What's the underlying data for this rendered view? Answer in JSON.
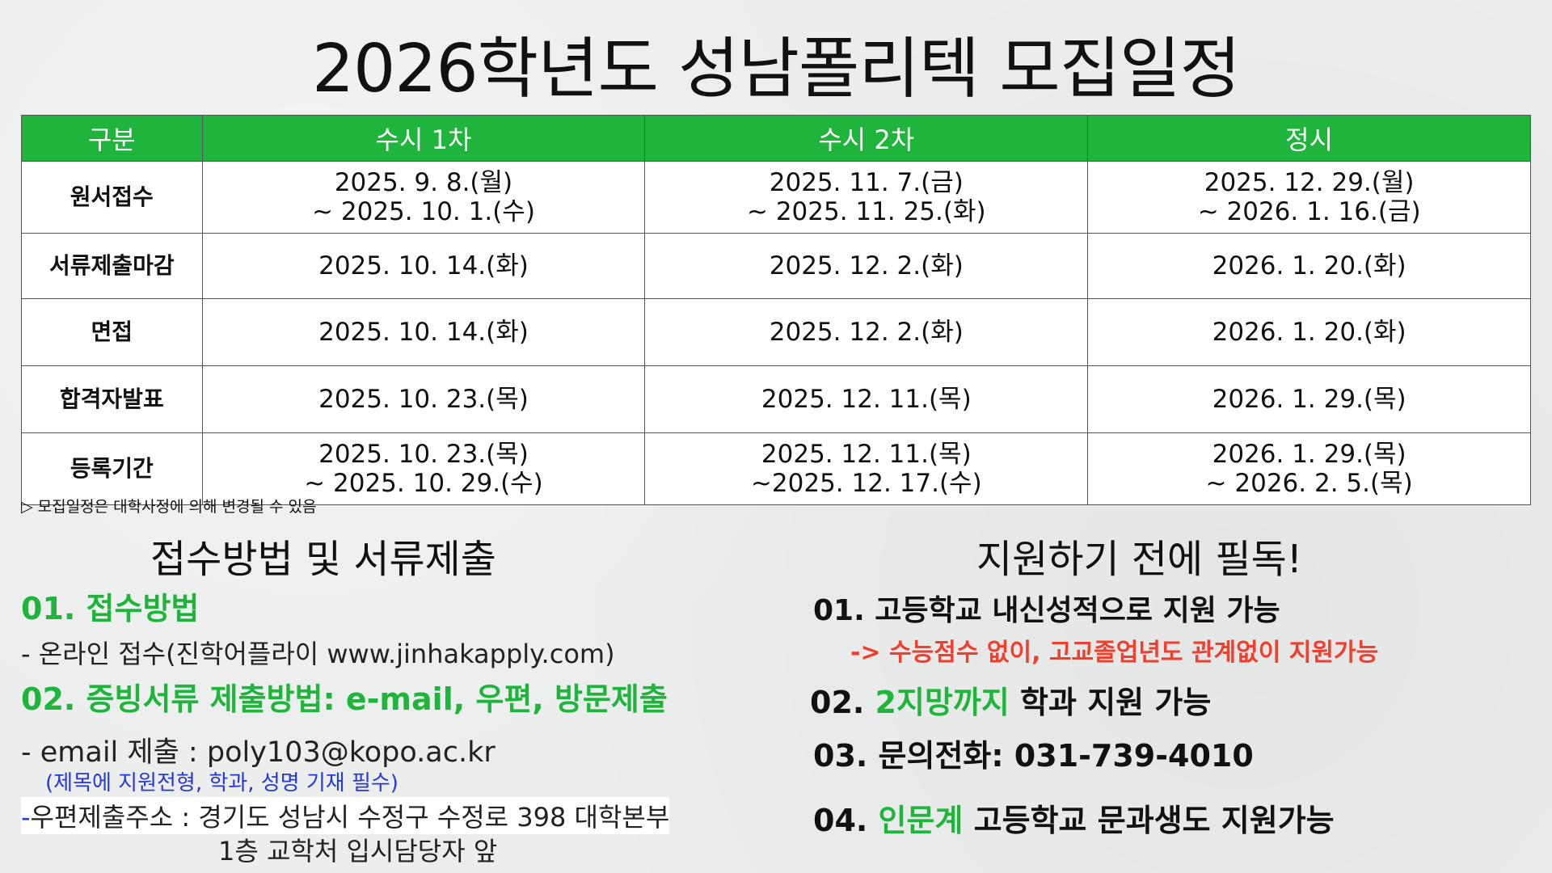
{
  "title": "2026학년도 성남폴리텍 모집일정",
  "table": {
    "headers": [
      "구분",
      "수시 1차",
      "수시 2차",
      "정시"
    ],
    "rows": [
      {
        "label": "원서접수",
        "cells": [
          [
            "2025. 9. 8.(월)",
            "~ 2025. 10. 1.(수)"
          ],
          [
            "2025. 11. 7.(금)",
            "~ 2025. 11. 25.(화)"
          ],
          [
            "2025. 12. 29.(월)",
            "~ 2026. 1. 16.(금)"
          ]
        ]
      },
      {
        "label": "서류제출마감",
        "cells": [
          [
            "2025. 10. 14.(화)"
          ],
          [
            "2025. 12. 2.(화)"
          ],
          [
            "2026. 1. 20.(화)"
          ]
        ]
      },
      {
        "label": "면접",
        "cells": [
          [
            "2025. 10. 14.(화)"
          ],
          [
            "2025. 12. 2.(화)"
          ],
          [
            "2026. 1. 20.(화)"
          ]
        ]
      },
      {
        "label": "합격자발표",
        "cells": [
          [
            "2025. 10. 23.(목)"
          ],
          [
            "2025. 12. 11.(목)"
          ],
          [
            "2026. 1. 29.(목)"
          ]
        ]
      },
      {
        "label": "등록기간",
        "cells": [
          [
            "2025. 10. 23.(목)",
            "~ 2025. 10. 29.(수)"
          ],
          [
            "2025. 12. 11.(목)",
            "~2025. 12. 17.(수)"
          ],
          [
            "2026. 1. 29.(목)",
            "~ 2026. 2. 5.(목)"
          ]
        ]
      }
    ]
  },
  "note": "▷ 모집일정은 대학사정에 의해 변경될 수 있음",
  "left": {
    "heading": "접수방법 및 서류제출",
    "item1_title": "01. 접수방법",
    "item1_desc": "- 온라인 접수(진학어플라이 www.jinhakapply.com)",
    "item2_title": "02. 증빙서류 제출방법: e-mail, 우편, 방문제출",
    "email_line": "- email 제출 : poly103@kopo.ac.kr",
    "email_note": "(제목에 지원전형, 학과, 성명 기재 필수)",
    "post_prefix": "-",
    "post_line": "우편제출주소 : 경기도 성남시 수정구 수정로 398 대학본부",
    "post_line2": "1층 교학처 입시담당자 앞"
  },
  "right": {
    "heading": "지원하기 전에 필독!",
    "item1": "01. 고등학교 내신성적으로 지원 가능",
    "item1_sub": "-> 수능점수 없이, 고교졸업년도 관계없이 지원가능",
    "item2_num": "02. ",
    "item2_green": "2지망까지",
    "item2_rest": " 학과 지원 가능",
    "item3": "03. 문의전화: 031-739-4010",
    "item4_num": "04. ",
    "item4_green": "인문계",
    "item4_rest": " 고등학교 문과생도 지원가능"
  },
  "colors": {
    "accent_green": "#1fb53c",
    "note_blue": "#2638d8",
    "alert_red": "#ee3f2f"
  }
}
